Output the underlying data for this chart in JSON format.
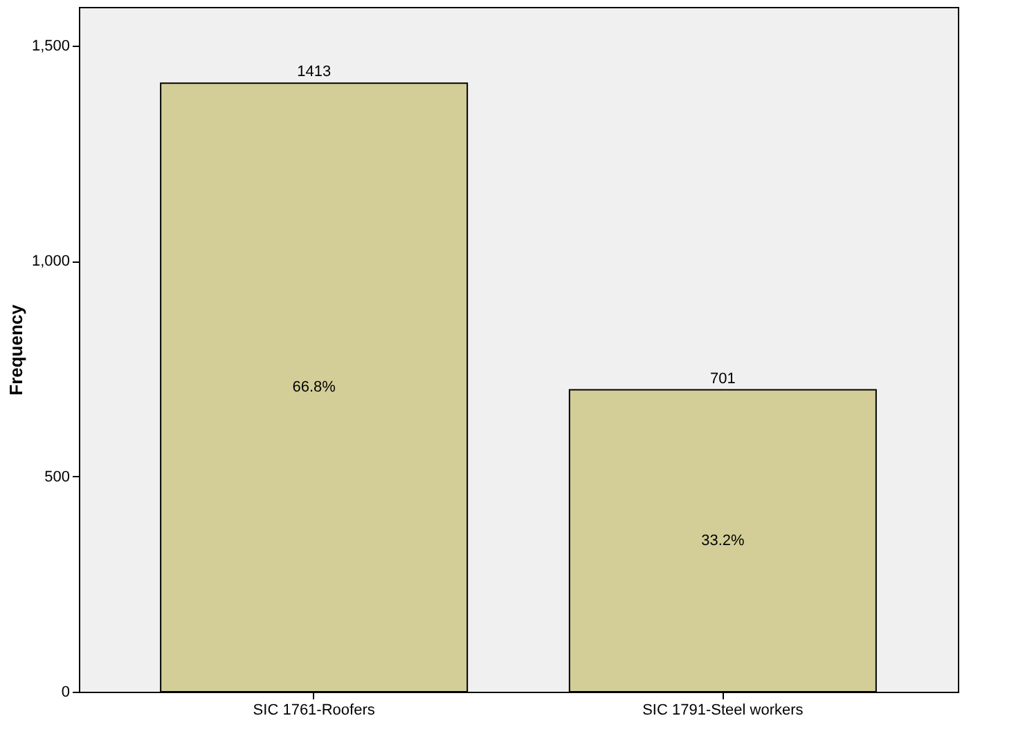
{
  "chart_data": {
    "type": "bar",
    "ylabel": "Frequency",
    "categories": [
      "SIC 1761-Roofers",
      "SIC 1791-Steel workers"
    ],
    "values": [
      1413,
      701
    ],
    "color": "#d3ce97",
    "ylim": [
      0,
      1590
    ],
    "yticks": [
      0,
      500,
      {
        "value": 1000,
        "label": "1,000"
      },
      {
        "value": 1500,
        "label": "1,500"
      }
    ],
    "grid": false,
    "data_labels": true,
    "annotations": [
      "66.8%",
      "33.2%"
    ]
  }
}
